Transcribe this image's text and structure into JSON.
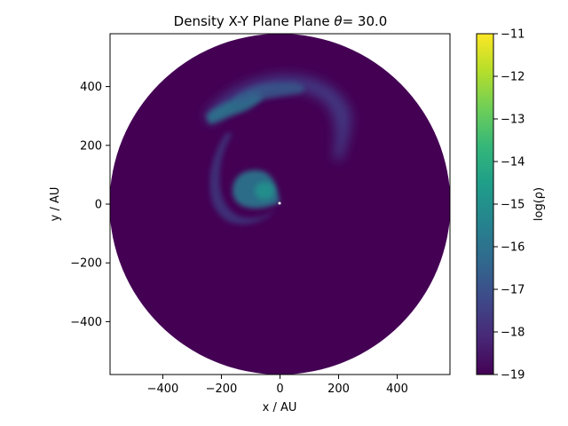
{
  "chart_data": {
    "type": "heatmap",
    "title": "Density X-Y Plane",
    "title_symbol": "θ",
    "title_value": "=  30.0",
    "xlabel": "x / AU",
    "ylabel": "y / AU",
    "xlim": [
      -580,
      580
    ],
    "ylim": [
      -580,
      580
    ],
    "xticks": [
      -400,
      -200,
      0,
      200,
      400
    ],
    "yticks": [
      -400,
      -200,
      0,
      200,
      400
    ],
    "xtick_labels": [
      "−400",
      "−200",
      "0",
      "200",
      "400"
    ],
    "ytick_labels": [
      "−400",
      "−200",
      "0",
      "200",
      "400"
    ],
    "disk_radius": 580,
    "colorbar": {
      "label": "log(ρ)",
      "range": [
        -19,
        -11
      ],
      "ticks": [
        -19,
        -18,
        -17,
        -16,
        -15,
        -14,
        -13,
        -12,
        -11
      ],
      "tick_labels": [
        "−19",
        "−18",
        "−17",
        "−16",
        "−15",
        "−14",
        "−13",
        "−12",
        "−11"
      ],
      "colormap": "viridis",
      "colors": [
        "#440154",
        "#482878",
        "#3e4989",
        "#31688e",
        "#26828e",
        "#1f9e89",
        "#35b779",
        "#6ece58",
        "#b5de2b",
        "#fde725"
      ]
    },
    "background_value": -19,
    "features": [
      {
        "name": "outer-arc",
        "x": [
          -300,
          -250,
          -150,
          -50,
          50,
          150,
          220,
          260
        ],
        "y": [
          280,
          330,
          370,
          400,
          410,
          380,
          320,
          230
        ],
        "value": -17.5
      },
      {
        "name": "upper-clump",
        "x": [
          -230,
          -170,
          -100,
          -50
        ],
        "y": [
          300,
          320,
          340,
          390
        ],
        "value": -15.8
      },
      {
        "name": "central-blob",
        "x": [
          -80,
          -40,
          0
        ],
        "y": [
          40,
          60,
          20
        ],
        "value": -15.2
      },
      {
        "name": "spiral-arm",
        "x": [
          -200,
          -230,
          -180,
          -100,
          -20
        ],
        "y": [
          250,
          120,
          -20,
          -60,
          -10
        ],
        "value": -17.8
      }
    ]
  }
}
